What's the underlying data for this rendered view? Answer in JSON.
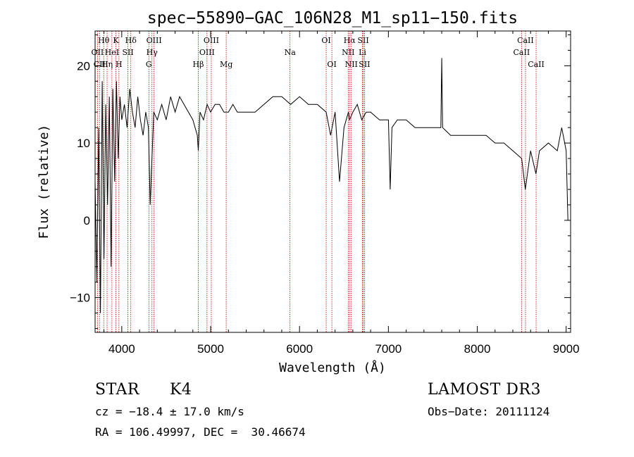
{
  "chart_data": {
    "type": "line",
    "title": "spec−55890−GAC_106N28_M1_sp11−150.fits",
    "xlabel": "Wavelength (Å)",
    "ylabel": "Flux (relative)",
    "xlim": [
      3700,
      9050
    ],
    "ylim": [
      -14.5,
      24.5
    ],
    "xticks": [
      4000,
      5000,
      6000,
      7000,
      8000,
      9000
    ],
    "xtick_labels": [
      "4000",
      "5000",
      "6000",
      "7000",
      "8000",
      "9000"
    ],
    "yticks": [
      -10,
      0,
      10,
      20
    ],
    "ytick_labels": [
      "−10",
      "0",
      "10",
      "20"
    ],
    "grid": false,
    "series": [
      {
        "name": "spectrum",
        "color": "#000000",
        "x": [
          3700,
          3720,
          3740,
          3760,
          3780,
          3800,
          3820,
          3840,
          3860,
          3880,
          3900,
          3920,
          3940,
          3960,
          3980,
          4000,
          4030,
          4060,
          4090,
          4120,
          4150,
          4180,
          4210,
          4240,
          4270,
          4300,
          4320,
          4340,
          4360,
          4400,
          4450,
          4500,
          4550,
          4600,
          4650,
          4700,
          4750,
          4800,
          4850,
          4861,
          4880,
          4920,
          4960,
          5000,
          5050,
          5100,
          5150,
          5200,
          5250,
          5300,
          5400,
          5500,
          5600,
          5700,
          5800,
          5900,
          6000,
          6100,
          6200,
          6300,
          6350,
          6400,
          6450,
          6500,
          6550,
          6563,
          6600,
          6650,
          6700,
          6750,
          6800,
          6900,
          7000,
          7020,
          7040,
          7100,
          7200,
          7300,
          7400,
          7500,
          7590,
          7600,
          7610,
          7700,
          7800,
          7900,
          8000,
          8100,
          8200,
          8300,
          8400,
          8500,
          8540,
          8600,
          8660,
          8700,
          8800,
          8900,
          8950,
          9000,
          9020
        ],
        "y": [
          5,
          -8,
          12,
          -12,
          18,
          -5,
          15,
          2,
          16,
          -6,
          17,
          5,
          18,
          8,
          16,
          13,
          15,
          12,
          17,
          14,
          12,
          16,
          13,
          11,
          14,
          12,
          2,
          8,
          14,
          13,
          15,
          13,
          16,
          14,
          16,
          15,
          14,
          13,
          11,
          9,
          14,
          13,
          15,
          14,
          15,
          15,
          14,
          14,
          15,
          14,
          14,
          14,
          15,
          16,
          16,
          15,
          16,
          15,
          15,
          14,
          11,
          14,
          5,
          12,
          14,
          13,
          14,
          15,
          13,
          14,
          14,
          13,
          13,
          4,
          12,
          13,
          13,
          12,
          12,
          12,
          12,
          21,
          12,
          11,
          11,
          11,
          11,
          11,
          10,
          10,
          9,
          8,
          4,
          9,
          6,
          9,
          10,
          9,
          12,
          9,
          0
        ]
      }
    ],
    "line_markers": [
      {
        "label": "Hθ",
        "x": 3797,
        "row": 0
      },
      {
        "label": "K",
        "x": 3934,
        "row": 0
      },
      {
        "label": "Hδ",
        "x": 4102,
        "row": 0
      },
      {
        "label": "OIII",
        "x": 4363,
        "row": 0
      },
      {
        "label": "OIII",
        "x": 5007,
        "row": 0
      },
      {
        "label": "OI",
        "x": 6300,
        "row": 0
      },
      {
        "label": "Hα",
        "x": 6563,
        "row": 0
      },
      {
        "label": "SII",
        "x": 6717,
        "row": 0
      },
      {
        "label": "CaII",
        "x": 8542,
        "row": 0
      },
      {
        "label": "OII",
        "x": 3727,
        "row": 1
      },
      {
        "label": "HeI",
        "x": 3889,
        "row": 1
      },
      {
        "label": "SII",
        "x": 4069,
        "row": 1
      },
      {
        "label": "Hγ",
        "x": 4340,
        "row": 1
      },
      {
        "label": "OIII",
        "x": 4959,
        "row": 1
      },
      {
        "label": "Na",
        "x": 5893,
        "row": 1
      },
      {
        "label": "NII",
        "x": 6548,
        "row": 1
      },
      {
        "label": "Li",
        "x": 6708,
        "row": 1
      },
      {
        "label": "CaII",
        "x": 8498,
        "row": 1
      },
      {
        "label": "CII",
        "x": 3750,
        "row": 2
      },
      {
        "label": "Hη",
        "x": 3835,
        "row": 2
      },
      {
        "label": "H",
        "x": 3968,
        "row": 2
      },
      {
        "label": "G",
        "x": 4305,
        "row": 2
      },
      {
        "label": "Hβ",
        "x": 4861,
        "row": 2
      },
      {
        "label": "Mg",
        "x": 5175,
        "row": 2
      },
      {
        "label": "OI",
        "x": 6364,
        "row": 2
      },
      {
        "label": "NII",
        "x": 6583,
        "row": 2
      },
      {
        "label": "SII",
        "x": 6731,
        "row": 2
      },
      {
        "label": "CaII",
        "x": 8662,
        "row": 2
      }
    ],
    "marker_color": "#cc0000"
  },
  "info": {
    "class_label": "STAR",
    "subclass": "K4",
    "survey": "LAMOST DR3",
    "cz": "cz = −18.4 ± 17.0 km/s",
    "obs_date": "Obs−Date: 20111124",
    "coords": "RA = 106.49997, DEC =  30.46674"
  }
}
